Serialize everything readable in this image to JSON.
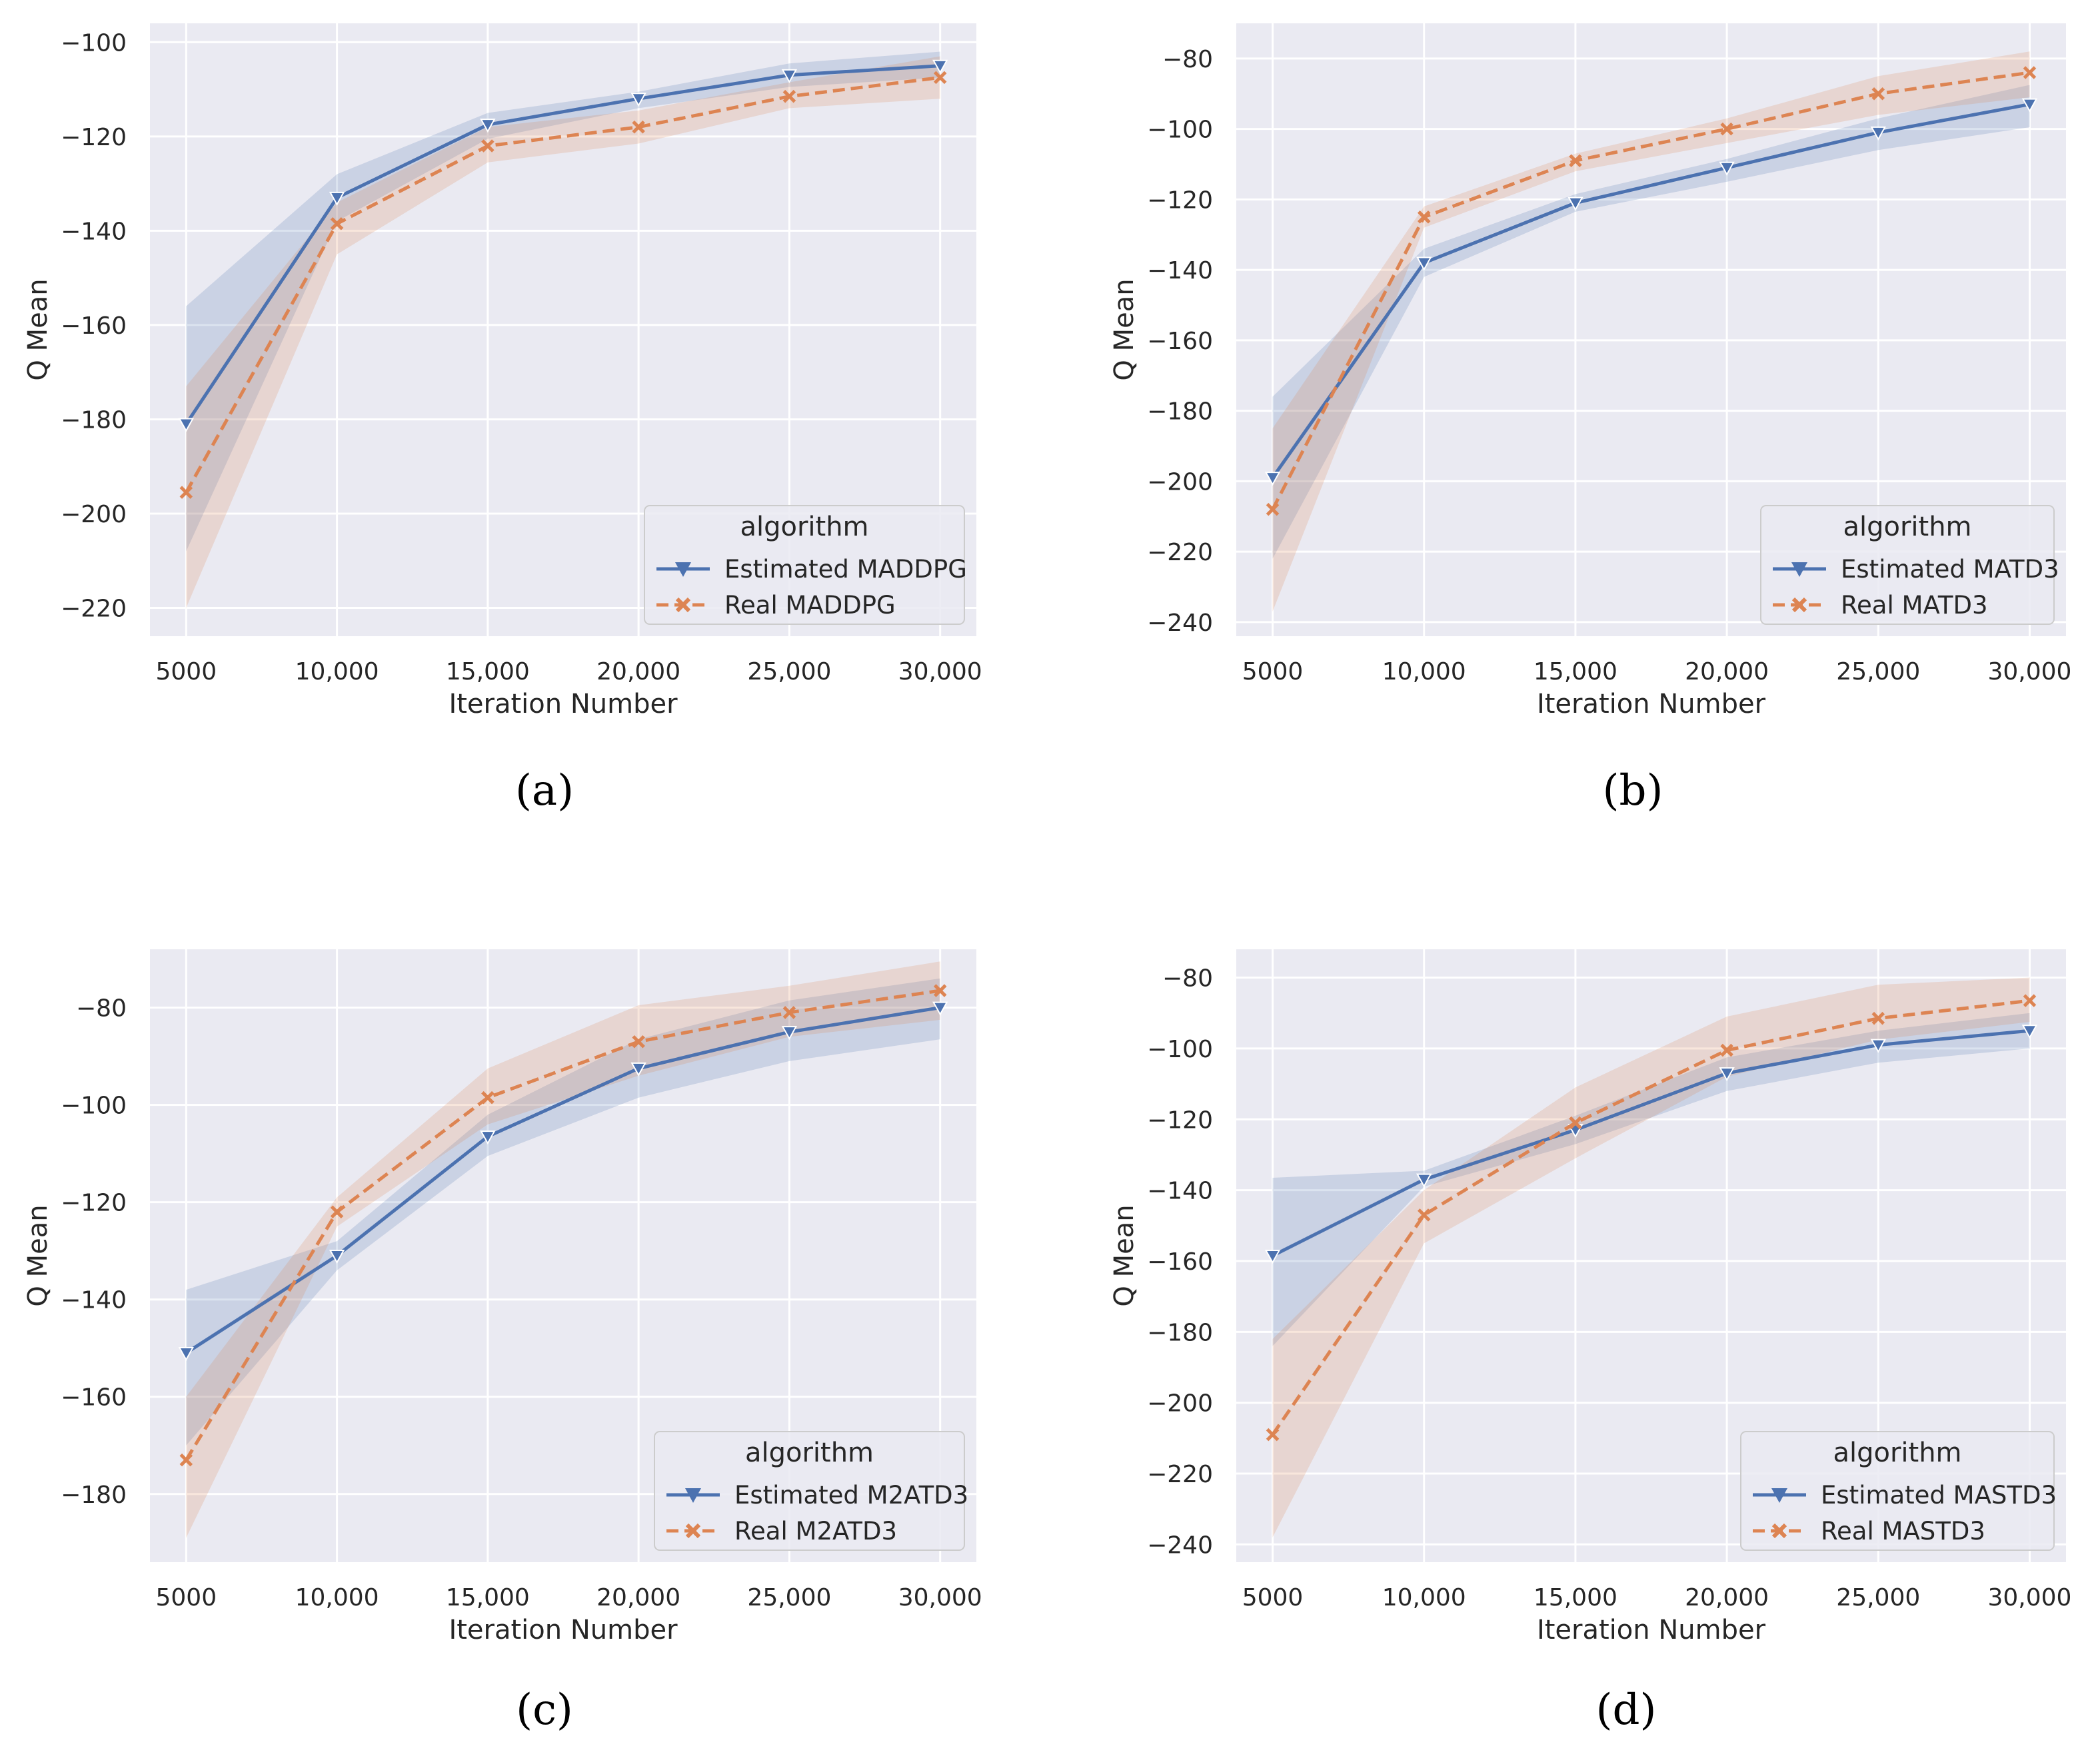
{
  "figure": {
    "captions": [
      "(a)",
      "(b)",
      "(c)",
      "(d)"
    ]
  },
  "colors": {
    "estimated": "#4c72b0",
    "real": "#dd8452",
    "plot_bg": "#eaeaf2",
    "grid": "#ffffff"
  },
  "chart_data": [
    {
      "type": "line",
      "id": "a",
      "xlabel": "Iteration Number",
      "ylabel": "Q Mean",
      "x": [
        5000,
        10000,
        15000,
        20000,
        25000,
        30000
      ],
      "x_tick_labels": [
        "5000",
        "10,000",
        "15,000",
        "20,000",
        "25,000",
        "30,000"
      ],
      "xlim": [
        3800,
        31200
      ],
      "ylim": [
        -226,
        -96
      ],
      "y_ticks": [
        -100,
        -120,
        -140,
        -160,
        -180,
        -200,
        -220
      ],
      "y_tick_labels": [
        "−100",
        "−120",
        "−140",
        "−160",
        "−180",
        "−200",
        "−220"
      ],
      "legend_title": "algorithm",
      "legend_position": "lower-right",
      "series": [
        {
          "name": "Estimated MADDPG",
          "marker": "triangle-down",
          "dash": "solid",
          "values": [
            -181,
            -133,
            -117.5,
            -112,
            -107,
            -105
          ],
          "lower": [
            -208,
            -138,
            -120.5,
            -114,
            -109.5,
            -107.5
          ],
          "upper": [
            -156,
            -128,
            -115,
            -110.5,
            -104.5,
            -102
          ]
        },
        {
          "name": "Real MADDPG",
          "marker": "x",
          "dash": "dashed",
          "values": [
            -195.5,
            -138.5,
            -122,
            -118,
            -111.5,
            -107.5
          ],
          "lower": [
            -220,
            -145,
            -125.5,
            -121.5,
            -114,
            -112
          ],
          "upper": [
            -173,
            -134,
            -118,
            -114.5,
            -108.5,
            -103
          ]
        }
      ]
    },
    {
      "type": "line",
      "id": "b",
      "xlabel": "Iteration Number",
      "ylabel": "Q Mean",
      "x": [
        5000,
        10000,
        15000,
        20000,
        25000,
        30000
      ],
      "x_tick_labels": [
        "5000",
        "10,000",
        "15,000",
        "20,000",
        "25,000",
        "30,000"
      ],
      "xlim": [
        3800,
        31200
      ],
      "ylim": [
        -244,
        -70
      ],
      "y_ticks": [
        -80,
        -100,
        -120,
        -140,
        -160,
        -180,
        -200,
        -220,
        -240
      ],
      "y_tick_labels": [
        "−80",
        "−100",
        "−120",
        "−140",
        "−160",
        "−180",
        "−200",
        "−220",
        "−240"
      ],
      "legend_title": "algorithm",
      "legend_position": "lower-right",
      "series": [
        {
          "name": "Estimated MATD3",
          "marker": "triangle-down",
          "dash": "solid",
          "values": [
            -199,
            -138,
            -121,
            -111,
            -101,
            -93
          ],
          "lower": [
            -222,
            -142,
            -123.5,
            -115,
            -106,
            -99.5
          ],
          "upper": [
            -176,
            -134,
            -118.5,
            -108.5,
            -97,
            -87.5
          ]
        },
        {
          "name": "Real MATD3",
          "marker": "x",
          "dash": "dashed",
          "values": [
            -208,
            -125,
            -109,
            -100,
            -90,
            -84
          ],
          "lower": [
            -237,
            -128,
            -112,
            -104,
            -96,
            -91
          ],
          "upper": [
            -185,
            -122,
            -107,
            -97,
            -85,
            -78
          ]
        }
      ]
    },
    {
      "type": "line",
      "id": "c",
      "xlabel": "Iteration Number",
      "ylabel": "Q Mean",
      "x": [
        5000,
        10000,
        15000,
        20000,
        25000,
        30000
      ],
      "x_tick_labels": [
        "5000",
        "10,000",
        "15,000",
        "20,000",
        "25,000",
        "30,000"
      ],
      "xlim": [
        3800,
        31200
      ],
      "ylim": [
        -194,
        -68
      ],
      "y_ticks": [
        -80,
        -100,
        -120,
        -140,
        -160,
        -180
      ],
      "y_tick_labels": [
        "−80",
        "−100",
        "−120",
        "−140",
        "−160",
        "−180"
      ],
      "legend_title": "algorithm",
      "legend_position": "lower-right",
      "series": [
        {
          "name": "Estimated M2ATD3",
          "marker": "triangle-down",
          "dash": "solid",
          "values": [
            -151,
            -131,
            -106.5,
            -92.5,
            -85,
            -80
          ],
          "lower": [
            -170,
            -134,
            -110.5,
            -98.5,
            -91,
            -86.5
          ],
          "upper": [
            -138,
            -128,
            -102,
            -86.5,
            -78.5,
            -74
          ]
        },
        {
          "name": "Real M2ATD3",
          "marker": "x",
          "dash": "dashed",
          "values": [
            -173,
            -122,
            -98.5,
            -87,
            -81,
            -76.5
          ],
          "lower": [
            -189,
            -125,
            -104,
            -94,
            -86,
            -82.5
          ],
          "upper": [
            -160,
            -119,
            -92.5,
            -79.5,
            -75.5,
            -70.5
          ]
        }
      ]
    },
    {
      "type": "line",
      "id": "d",
      "xlabel": "Iteration Number",
      "ylabel": "Q Mean",
      "x": [
        5000,
        10000,
        15000,
        20000,
        25000,
        30000
      ],
      "x_tick_labels": [
        "5000",
        "10,000",
        "15,000",
        "20,000",
        "25,000",
        "30,000"
      ],
      "xlim": [
        3800,
        31200
      ],
      "ylim": [
        -245,
        -72
      ],
      "y_ticks": [
        -80,
        -100,
        -120,
        -140,
        -160,
        -180,
        -200,
        -220,
        -240
      ],
      "y_tick_labels": [
        "−80",
        "−100",
        "−120",
        "−140",
        "−160",
        "−180",
        "−200",
        "−220",
        "−240"
      ],
      "legend_title": "algorithm",
      "legend_position": "lower-right",
      "series": [
        {
          "name": "Estimated MASTD3",
          "marker": "triangle-down",
          "dash": "solid",
          "values": [
            -158.5,
            -137,
            -123,
            -107,
            -99,
            -95
          ],
          "lower": [
            -184,
            -139,
            -127,
            -112,
            -104,
            -100
          ],
          "upper": [
            -136.5,
            -134.5,
            -119,
            -102.5,
            -95,
            -90
          ]
        },
        {
          "name": "Real MASTD3",
          "marker": "x",
          "dash": "dashed",
          "values": [
            -209,
            -147,
            -121,
            -100.5,
            -91.5,
            -86.5
          ],
          "lower": [
            -238,
            -155,
            -131,
            -108,
            -97.5,
            -92.5
          ],
          "upper": [
            -182,
            -140,
            -111,
            -91,
            -82,
            -80
          ]
        }
      ]
    }
  ]
}
